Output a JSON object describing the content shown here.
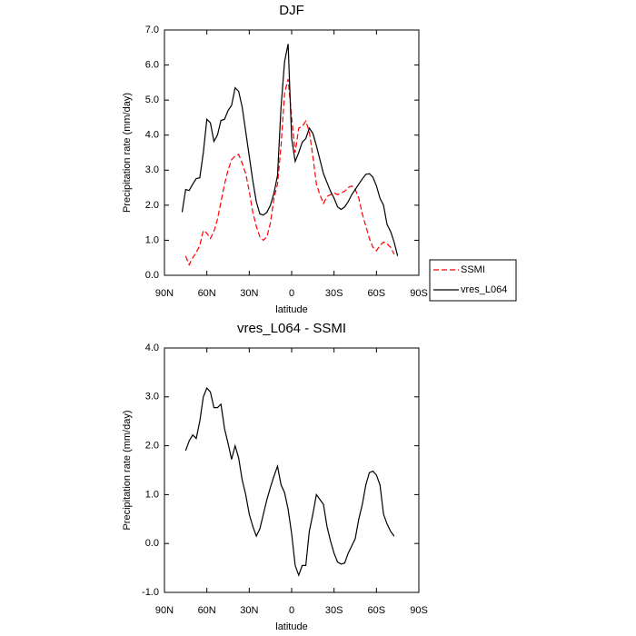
{
  "chart_data": [
    {
      "type": "line",
      "title": "DJF",
      "x_label": "latitude",
      "y_label": "Precipitation rate (mm/day)",
      "x": [
        77.5,
        75,
        72.5,
        70,
        67.5,
        65,
        62.5,
        60,
        57.5,
        55,
        52.5,
        50,
        47.5,
        45,
        42.5,
        40,
        37.5,
        35,
        32.5,
        30,
        27.5,
        25,
        22.5,
        20,
        17.5,
        15,
        12.5,
        10,
        7.5,
        5,
        2.5,
        0,
        -2.5,
        -5,
        -7.5,
        -10,
        -12.5,
        -15,
        -17.5,
        -20,
        -22.5,
        -25,
        -27.5,
        -30,
        -32.5,
        -35,
        -37.5,
        -40,
        -42.5,
        -45,
        -47.5,
        -50,
        -52.5,
        -55,
        -57.5,
        -60,
        -62.5,
        -65,
        -67.5,
        -70,
        -72.5,
        -75
      ],
      "series": [
        {
          "name": "SSMI",
          "color": "#ff0000",
          "dash": true,
          "values": [
            null,
            0.55,
            0.3,
            0.5,
            0.65,
            0.85,
            1.28,
            1.2,
            1.05,
            1.25,
            1.6,
            2.1,
            2.6,
            3.0,
            3.3,
            3.4,
            3.45,
            3.2,
            2.9,
            2.4,
            1.8,
            1.4,
            1.1,
            1.0,
            1.1,
            1.5,
            2.2,
            2.6,
            3.7,
            5.2,
            5.6,
            4.5,
            3.5,
            4.2,
            4.25,
            4.4,
            4.1,
            3.4,
            2.6,
            2.3,
            2.05,
            2.25,
            2.3,
            2.35,
            2.3,
            2.35,
            2.4,
            2.5,
            2.55,
            2.45,
            2.2,
            1.75,
            1.4,
            1.05,
            0.8,
            0.7,
            0.85,
            0.95,
            0.9,
            0.8,
            0.6,
            null
          ]
        },
        {
          "name": "vres_L064",
          "color": "#000000",
          "dash": false,
          "values": [
            1.8,
            2.45,
            2.42,
            2.6,
            2.76,
            2.78,
            3.5,
            4.45,
            4.35,
            3.82,
            4.0,
            4.42,
            4.45,
            4.7,
            4.85,
            5.35,
            5.25,
            4.8,
            4.1,
            3.4,
            2.7,
            2.1,
            1.75,
            1.72,
            1.8,
            2.0,
            2.35,
            2.85,
            4.8,
            6.1,
            6.6,
            3.9,
            3.25,
            3.5,
            3.8,
            3.9,
            4.2,
            4.05,
            3.7,
            3.3,
            2.9,
            2.65,
            2.4,
            2.2,
            1.95,
            1.88,
            1.95,
            2.1,
            2.3,
            2.45,
            2.6,
            2.75,
            2.88,
            2.9,
            2.8,
            2.55,
            2.2,
            2.0,
            1.45,
            1.25,
            0.95,
            0.55
          ]
        }
      ],
      "xlim": [
        90,
        -90
      ],
      "xticks": [
        {
          "value": 90,
          "label": "90N"
        },
        {
          "value": 60,
          "label": "60N"
        },
        {
          "value": 30,
          "label": "30N"
        },
        0,
        {
          "value": -30,
          "label": "30S"
        },
        {
          "value": -60,
          "label": "60S"
        },
        {
          "value": -90,
          "label": "90S"
        }
      ],
      "ylim": [
        0,
        7
      ],
      "yticks": [
        {
          "value": 0,
          "label": "0.0"
        },
        {
          "value": 1,
          "label": "1.0"
        },
        {
          "value": 2,
          "label": "2.0"
        },
        {
          "value": 3,
          "label": "3.0"
        },
        {
          "value": 4,
          "label": "4.0"
        },
        {
          "value": 5,
          "label": "5.0"
        },
        {
          "value": 6,
          "label": "6.0"
        },
        {
          "value": 7,
          "label": "7.0"
        }
      ],
      "legend": "right"
    },
    {
      "type": "line",
      "title": "vres_L064 - SSMI",
      "x_label": "latitude",
      "y_label": "Precipitation rate (mm/day)",
      "x": [
        77.5,
        75,
        72.5,
        70,
        67.5,
        65,
        62.5,
        60,
        57.5,
        55,
        52.5,
        50,
        47.5,
        45,
        42.5,
        40,
        37.5,
        35,
        32.5,
        30,
        27.5,
        25,
        22.5,
        20,
        17.5,
        15,
        12.5,
        10,
        7.5,
        5,
        2.5,
        0,
        -2.5,
        -5,
        -7.5,
        -10,
        -12.5,
        -15,
        -17.5,
        -20,
        -22.5,
        -25,
        -27.5,
        -30,
        -32.5,
        -35,
        -37.5,
        -40,
        -42.5,
        -45,
        -47.5,
        -50,
        -52.5,
        -55,
        -57.5,
        -60,
        -62.5,
        -65,
        -67.5,
        -70,
        -72.5,
        -75
      ],
      "series": [
        {
          "color": "#000000",
          "dash": false,
          "values": [
            null,
            1.9,
            2.1,
            2.22,
            2.15,
            2.5,
            3.0,
            3.18,
            3.1,
            2.78,
            2.78,
            2.85,
            2.35,
            2.05,
            1.72,
            2.0,
            1.75,
            1.3,
            1.0,
            0.6,
            0.35,
            0.15,
            0.3,
            0.6,
            0.9,
            1.15,
            1.38,
            1.58,
            1.2,
            1.04,
            0.7,
            0.2,
            -0.45,
            -0.65,
            -0.45,
            -0.45,
            0.25,
            0.6,
            1.0,
            0.9,
            0.8,
            0.35,
            0.05,
            -0.2,
            -0.38,
            -0.42,
            -0.4,
            -0.2,
            -0.05,
            0.1,
            0.5,
            0.8,
            1.2,
            1.45,
            1.48,
            1.4,
            1.2,
            0.6,
            0.4,
            0.25,
            0.15,
            null
          ]
        }
      ],
      "xlim": [
        90,
        -90
      ],
      "xticks": [
        {
          "value": 90,
          "label": "90N"
        },
        {
          "value": 60,
          "label": "60N"
        },
        {
          "value": 30,
          "label": "30N"
        },
        0,
        {
          "value": -30,
          "label": "30S"
        },
        {
          "value": -60,
          "label": "60S"
        },
        {
          "value": -90,
          "label": "90S"
        }
      ],
      "ylim": [
        -1,
        4
      ],
      "yticks": [
        {
          "value": -1,
          "label": "-1.0"
        },
        {
          "value": 0,
          "label": "0.0"
        },
        {
          "value": 1,
          "label": "1.0"
        },
        {
          "value": 2,
          "label": "2.0"
        },
        {
          "value": 3,
          "label": "3.0"
        },
        {
          "value": 4,
          "label": "4.0"
        }
      ]
    }
  ]
}
